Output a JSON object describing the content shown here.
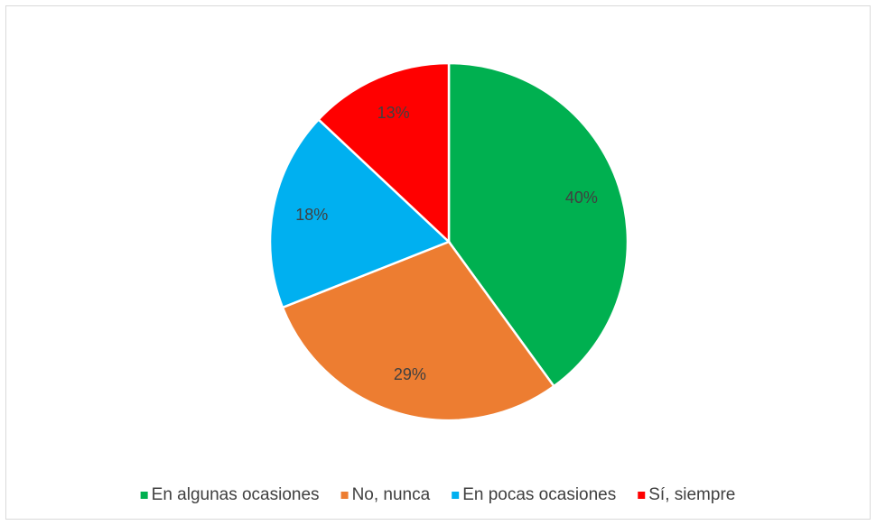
{
  "chart_data": {
    "type": "pie",
    "categories": [
      "En algunas ocasiones",
      "No, nunca",
      "En pocas ocasiones",
      "Sí, siempre"
    ],
    "values": [
      40,
      29,
      18,
      13
    ],
    "value_labels": [
      "40%",
      "29%",
      "18%",
      "13%"
    ],
    "colors": [
      "#00b050",
      "#ed7d31",
      "#00b0f0",
      "#ff0000"
    ],
    "legend": "bottom"
  }
}
